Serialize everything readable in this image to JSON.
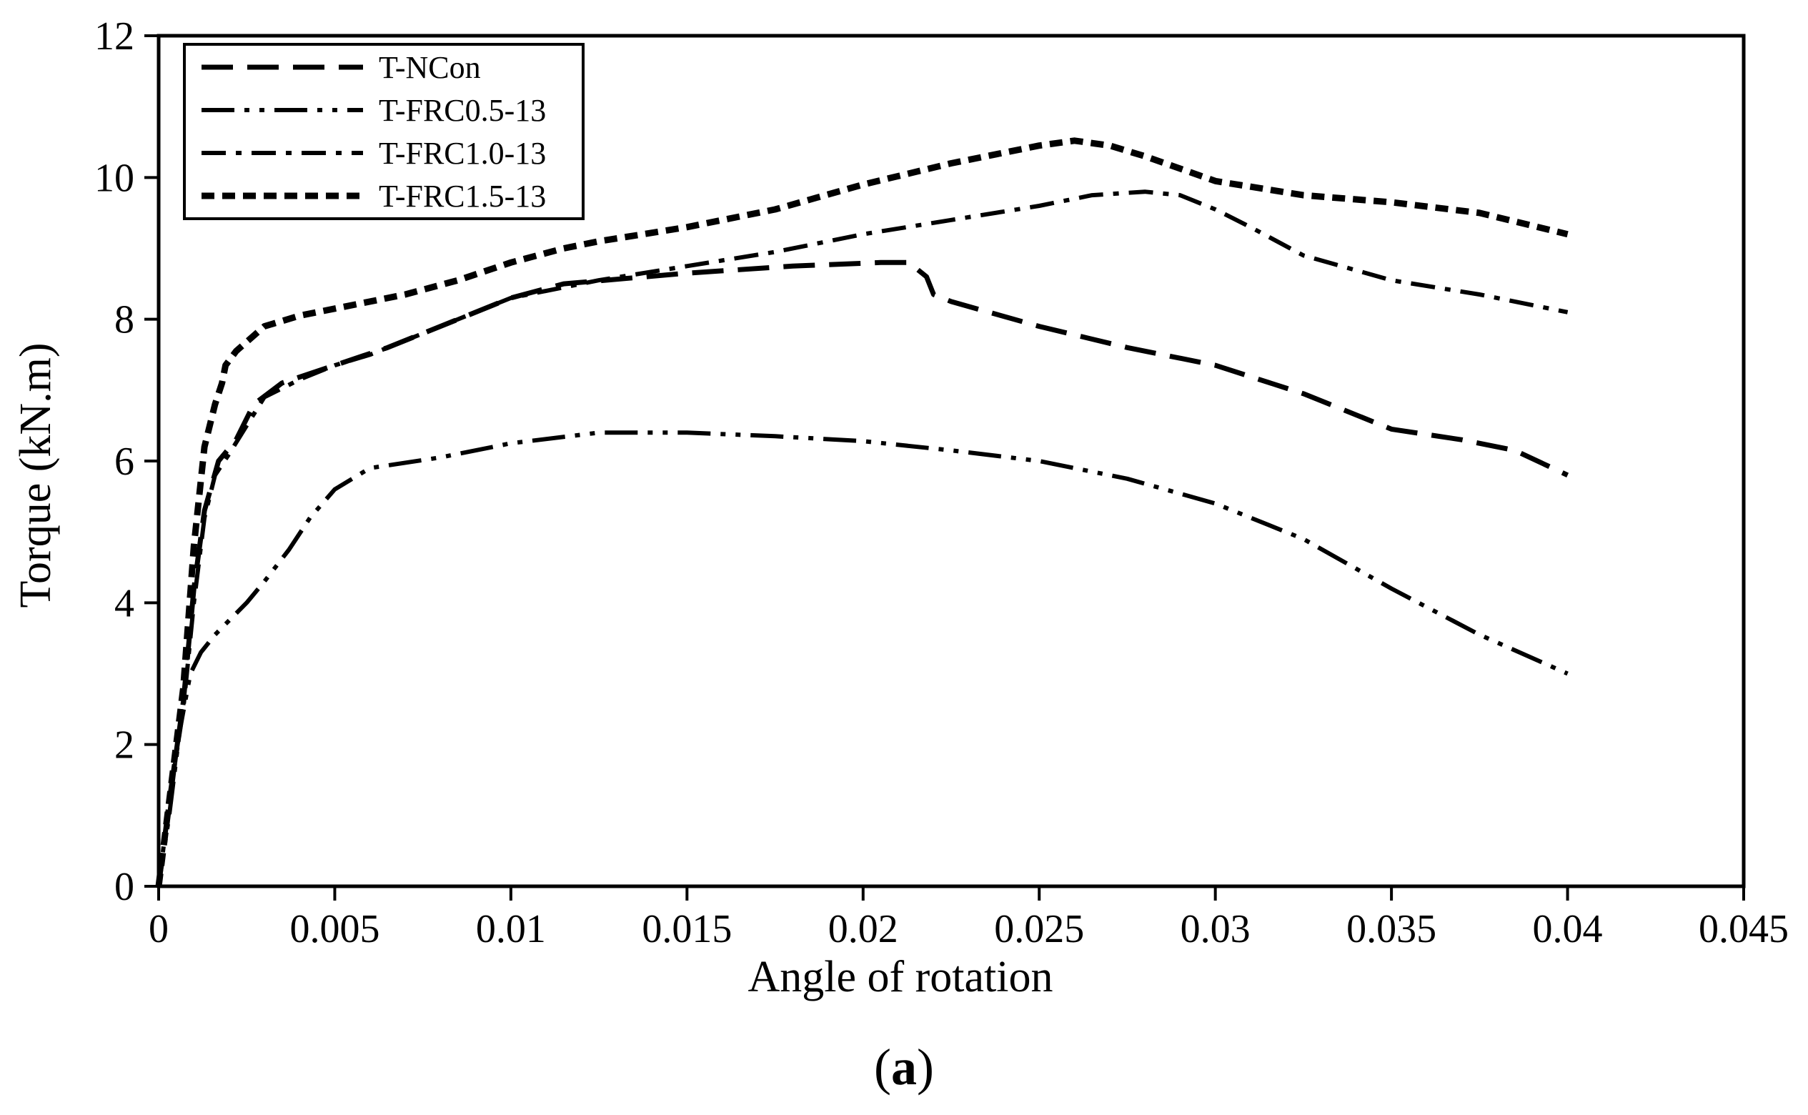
{
  "chart_data": {
    "type": "line",
    "title": "",
    "xlabel": "Angle of rotation",
    "ylabel": "Torque (kN.m)",
    "xlim": [
      0,
      0.045
    ],
    "ylim": [
      0,
      12
    ],
    "x_ticks": [
      0,
      0.005,
      0.01,
      0.015,
      0.02,
      0.025,
      0.03,
      0.035,
      0.04,
      0.045
    ],
    "x_tick_labels": [
      "0",
      "0.005",
      "0.01",
      "0.015",
      "0.02",
      "0.025",
      "0.03",
      "0.035",
      "0.04",
      "0.045"
    ],
    "y_ticks": [
      0,
      2,
      4,
      6,
      8,
      10,
      12
    ],
    "y_tick_labels": [
      "0",
      "2",
      "4",
      "6",
      "8",
      "10",
      "12"
    ],
    "grid": false,
    "legend_position": "top-left",
    "series": [
      {
        "name": "T-NCon",
        "dash": "long-dash",
        "points": [
          [
            0,
            0
          ],
          [
            0.0003,
            1.2
          ],
          [
            0.0007,
            2.6
          ],
          [
            0.001,
            4.2
          ],
          [
            0.0013,
            5.3
          ],
          [
            0.0017,
            6.0
          ],
          [
            0.0022,
            6.3
          ],
          [
            0.0027,
            6.8
          ],
          [
            0.0035,
            7.1
          ],
          [
            0.005,
            7.35
          ],
          [
            0.0065,
            7.6
          ],
          [
            0.0085,
            8.0
          ],
          [
            0.01,
            8.3
          ],
          [
            0.0115,
            8.5
          ],
          [
            0.015,
            8.65
          ],
          [
            0.018,
            8.75
          ],
          [
            0.0205,
            8.8
          ],
          [
            0.0213,
            8.8
          ],
          [
            0.0218,
            8.6
          ],
          [
            0.022,
            8.35
          ],
          [
            0.0225,
            8.25
          ],
          [
            0.025,
            7.9
          ],
          [
            0.0275,
            7.6
          ],
          [
            0.03,
            7.35
          ],
          [
            0.0325,
            6.95
          ],
          [
            0.035,
            6.45
          ],
          [
            0.037,
            6.3
          ],
          [
            0.0385,
            6.15
          ],
          [
            0.04,
            5.8
          ]
        ]
      },
      {
        "name": "T-FRC0.5-13",
        "dash": "dash-dot-dot",
        "points": [
          [
            0,
            0
          ],
          [
            0.0003,
            1.0
          ],
          [
            0.0006,
            2.2
          ],
          [
            0.0009,
            3.0
          ],
          [
            0.0012,
            3.3
          ],
          [
            0.0016,
            3.55
          ],
          [
            0.002,
            3.75
          ],
          [
            0.0025,
            4.0
          ],
          [
            0.003,
            4.3
          ],
          [
            0.0037,
            4.75
          ],
          [
            0.0043,
            5.2
          ],
          [
            0.005,
            5.6
          ],
          [
            0.006,
            5.9
          ],
          [
            0.008,
            6.05
          ],
          [
            0.01,
            6.25
          ],
          [
            0.0125,
            6.4
          ],
          [
            0.015,
            6.4
          ],
          [
            0.0175,
            6.35
          ],
          [
            0.02,
            6.28
          ],
          [
            0.0225,
            6.15
          ],
          [
            0.025,
            6.0
          ],
          [
            0.0275,
            5.75
          ],
          [
            0.03,
            5.4
          ],
          [
            0.0325,
            4.9
          ],
          [
            0.035,
            4.2
          ],
          [
            0.0375,
            3.55
          ],
          [
            0.04,
            3.0
          ]
        ]
      },
      {
        "name": "T-FRC1.0-13",
        "dash": "dash-dot",
        "points": [
          [
            0,
            0
          ],
          [
            0.0003,
            1.2
          ],
          [
            0.0007,
            2.5
          ],
          [
            0.001,
            4.0
          ],
          [
            0.0013,
            5.2
          ],
          [
            0.0016,
            5.8
          ],
          [
            0.002,
            6.1
          ],
          [
            0.0025,
            6.5
          ],
          [
            0.003,
            6.9
          ],
          [
            0.004,
            7.15
          ],
          [
            0.005,
            7.35
          ],
          [
            0.006,
            7.5
          ],
          [
            0.008,
            7.9
          ],
          [
            0.01,
            8.3
          ],
          [
            0.0125,
            8.55
          ],
          [
            0.015,
            8.75
          ],
          [
            0.0175,
            8.95
          ],
          [
            0.02,
            9.2
          ],
          [
            0.0225,
            9.4
          ],
          [
            0.025,
            9.6
          ],
          [
            0.0265,
            9.75
          ],
          [
            0.028,
            9.8
          ],
          [
            0.029,
            9.75
          ],
          [
            0.03,
            9.55
          ],
          [
            0.031,
            9.3
          ],
          [
            0.0325,
            8.9
          ],
          [
            0.035,
            8.55
          ],
          [
            0.0375,
            8.35
          ],
          [
            0.04,
            8.1
          ]
        ]
      },
      {
        "name": "T-FRC1.5-13",
        "dash": "short-dash",
        "points": [
          [
            0,
            0
          ],
          [
            0.0003,
            1.2
          ],
          [
            0.0007,
            2.8
          ],
          [
            0.001,
            4.8
          ],
          [
            0.0013,
            6.2
          ],
          [
            0.0016,
            6.8
          ],
          [
            0.0018,
            7.1
          ],
          [
            0.0019,
            7.35
          ],
          [
            0.0022,
            7.55
          ],
          [
            0.003,
            7.9
          ],
          [
            0.004,
            8.05
          ],
          [
            0.005,
            8.15
          ],
          [
            0.007,
            8.35
          ],
          [
            0.0085,
            8.55
          ],
          [
            0.01,
            8.8
          ],
          [
            0.0115,
            9.0
          ],
          [
            0.0125,
            9.1
          ],
          [
            0.015,
            9.3
          ],
          [
            0.0175,
            9.55
          ],
          [
            0.02,
            9.9
          ],
          [
            0.0225,
            10.2
          ],
          [
            0.025,
            10.45
          ],
          [
            0.026,
            10.52
          ],
          [
            0.027,
            10.45
          ],
          [
            0.028,
            10.3
          ],
          [
            0.03,
            9.95
          ],
          [
            0.0325,
            9.75
          ],
          [
            0.035,
            9.65
          ],
          [
            0.0375,
            9.5
          ],
          [
            0.04,
            9.2
          ]
        ]
      }
    ]
  },
  "caption": {
    "open": "(",
    "letter": "a",
    "close": ")"
  }
}
